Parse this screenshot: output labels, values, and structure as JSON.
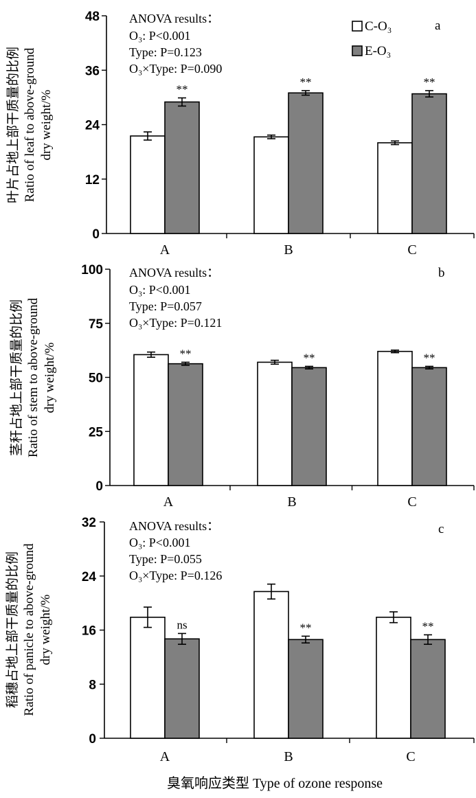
{
  "legend": {
    "c_label": "C-O₃",
    "e_label": "E-O₃"
  },
  "x_axis_title": "臭氧响应类型 Type of ozone response",
  "chart_data": [
    {
      "type": "bar",
      "panel_letter": "a",
      "ylabel_zh": "叶片占地上部干质量的比例",
      "ylabel_en_1": "Ratio of leaf to above-ground",
      "ylabel_en_2": "dry weight/%",
      "categories": [
        "A",
        "B",
        "C"
      ],
      "ylim": [
        0,
        48
      ],
      "yticks": [
        0,
        12,
        24,
        36,
        48
      ],
      "series": [
        {
          "name": "C-O₃",
          "values": [
            21.5,
            21.3,
            20.0
          ],
          "errors": [
            0.9,
            0.4,
            0.4
          ]
        },
        {
          "name": "E-O₃",
          "values": [
            29.0,
            31.0,
            30.8
          ],
          "errors": [
            0.9,
            0.5,
            0.7
          ]
        }
      ],
      "significance": [
        "**",
        "**",
        "**"
      ],
      "anova": {
        "title": "ANOVA results：",
        "o3": "O₃: P<0.001",
        "type": "Type: P=0.123",
        "inter": "O₃×Type: P=0.090"
      }
    },
    {
      "type": "bar",
      "panel_letter": "b",
      "ylabel_zh": "茎秆占地上部干质量的比例",
      "ylabel_en_1": "Ratio of stem to above-ground",
      "ylabel_en_2": "dry weight/%",
      "categories": [
        "A",
        "B",
        "C"
      ],
      "ylim": [
        0,
        100
      ],
      "yticks": [
        0,
        25,
        50,
        75,
        100
      ],
      "series": [
        {
          "name": "C-O₃",
          "values": [
            60.5,
            57.0,
            62.0
          ],
          "errors": [
            1.2,
            0.9,
            0.6
          ]
        },
        {
          "name": "E-O₃",
          "values": [
            56.3,
            54.5,
            54.5
          ],
          "errors": [
            0.7,
            0.6,
            0.6
          ]
        }
      ],
      "significance": [
        "**",
        "**",
        "**"
      ],
      "anova": {
        "title": "ANOVA results：",
        "o3": "O₃: P<0.001",
        "type": "Type: P=0.057",
        "inter": "O₃×Type: P=0.121"
      }
    },
    {
      "type": "bar",
      "panel_letter": "c",
      "ylabel_zh": "稻穗占地上部干质量的比例",
      "ylabel_en_1": "Ratio of panicle to above-ground",
      "ylabel_en_2": "dry weight/%",
      "categories": [
        "A",
        "B",
        "C"
      ],
      "ylim": [
        0,
        32
      ],
      "yticks": [
        0,
        8,
        16,
        24,
        32
      ],
      "series": [
        {
          "name": "C-O₃",
          "values": [
            17.9,
            21.7,
            17.9
          ],
          "errors": [
            1.5,
            1.1,
            0.8
          ]
        },
        {
          "name": "E-O₃",
          "values": [
            14.7,
            14.6,
            14.6
          ],
          "errors": [
            0.8,
            0.5,
            0.7
          ]
        }
      ],
      "significance": [
        "ns",
        "**",
        "**"
      ],
      "anova": {
        "title": "ANOVA results：",
        "o3": "O₃: P<0.001",
        "type": "Type: P=0.055",
        "inter": "O₃×Type: P=0.126"
      }
    }
  ]
}
